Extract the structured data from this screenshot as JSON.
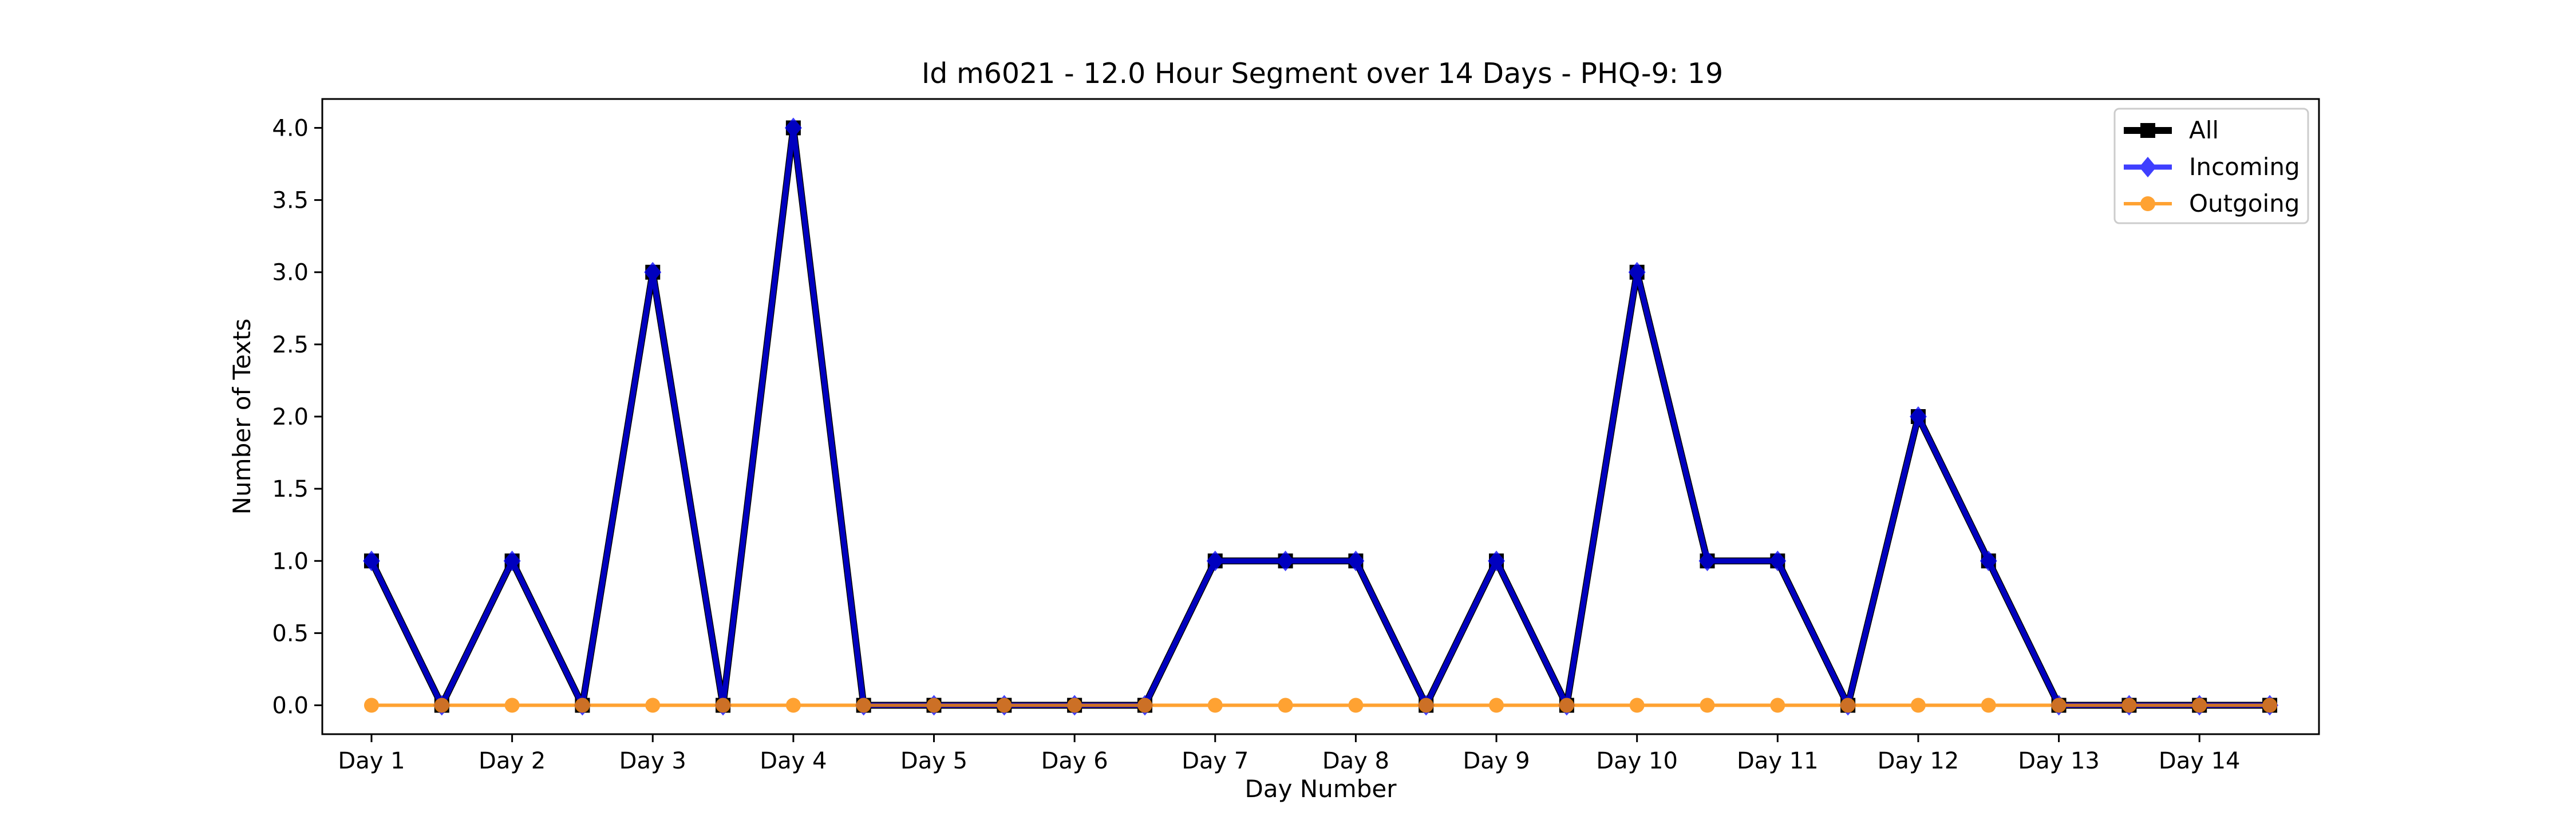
{
  "chart_data": {
    "type": "line",
    "title": "Id m6021 - 12.0 Hour Segment over 14 Days - PHQ-9: 19",
    "xlabel": "Day Number",
    "ylabel": "Number of Texts",
    "x_tick_labels": [
      "Day 1",
      "Day 2",
      "Day 3",
      "Day 4",
      "Day 5",
      "Day 6",
      "Day 7",
      "Day 8",
      "Day 9",
      "Day 10",
      "Day 11",
      "Day 12",
      "Day 13",
      "Day 14"
    ],
    "y_tick_labels": [
      "0.0",
      "0.5",
      "1.0",
      "1.5",
      "2.0",
      "2.5",
      "3.0",
      "3.5",
      "4.0"
    ],
    "ylim": [
      -0.2,
      4.2
    ],
    "grid": false,
    "legend_position": "top-right",
    "x": [
      1,
      1.5,
      2,
      2.5,
      3,
      3.5,
      4,
      4.5,
      5,
      5.5,
      6,
      6.5,
      7,
      7.5,
      8,
      8.5,
      9,
      9.5,
      10,
      10.5,
      11,
      11.5,
      12,
      12.5,
      13,
      13.5,
      14,
      14.5
    ],
    "series": [
      {
        "name": "All",
        "color": "#000000",
        "marker": "square",
        "values": [
          1,
          0,
          1,
          0,
          3,
          0,
          4,
          0,
          0,
          0,
          0,
          0,
          1,
          1,
          1,
          0,
          1,
          0,
          3,
          1,
          1,
          0,
          2,
          1,
          0,
          0,
          0,
          0
        ]
      },
      {
        "name": "Incoming",
        "color": "#0000ff",
        "marker": "diamond",
        "values": [
          1,
          0,
          1,
          0,
          3,
          0,
          4,
          0,
          0,
          0,
          0,
          0,
          1,
          1,
          1,
          0,
          1,
          0,
          3,
          1,
          1,
          0,
          2,
          1,
          0,
          0,
          0,
          0
        ]
      },
      {
        "name": "Outgoing",
        "color": "#ff8c00",
        "marker": "circle",
        "values": [
          0,
          0,
          0,
          0,
          0,
          0,
          0,
          0,
          0,
          0,
          0,
          0,
          0,
          0,
          0,
          0,
          0,
          0,
          0,
          0,
          0,
          0,
          0,
          0,
          0,
          0,
          0,
          0
        ]
      }
    ]
  }
}
